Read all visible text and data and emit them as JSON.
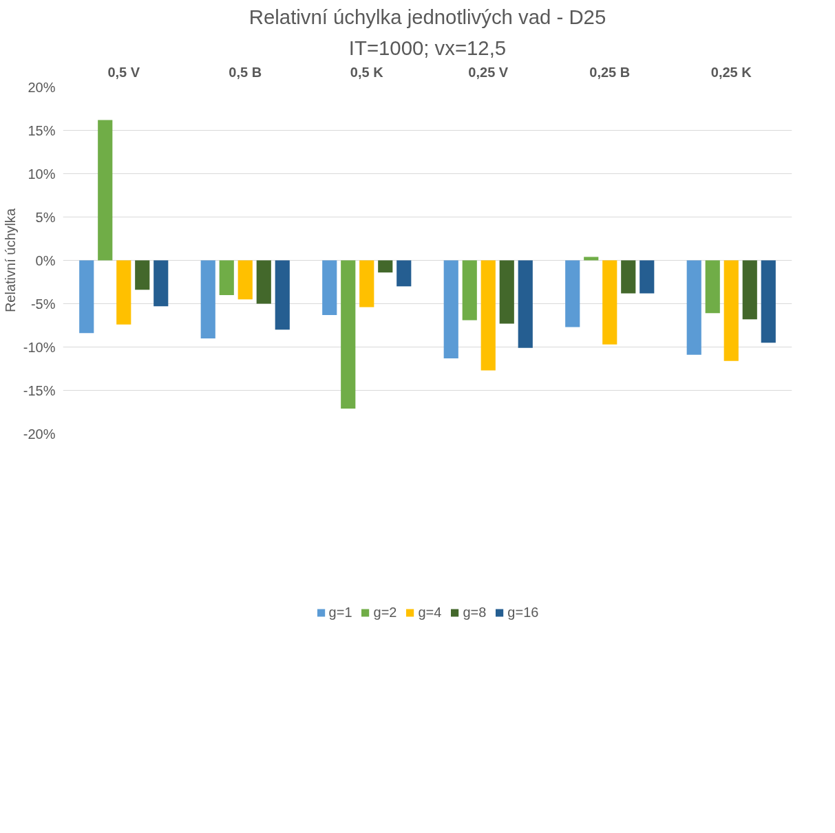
{
  "chart_data": {
    "type": "bar",
    "title": "Relativní úchylka jednotlivých vad - D25",
    "subtitle": "IT=1000; vx=12,5",
    "ylabel": "Relativní úchylka",
    "categories": [
      "0,5 V",
      "0,5 B",
      "0,5 K",
      "0,25 V",
      "0,25 B",
      "0,25 K"
    ],
    "series": [
      {
        "name": "g=1",
        "color": "#5b9bd5",
        "values": [
          -8.4,
          -9.0,
          -6.3,
          -11.3,
          -7.7,
          -10.9
        ]
      },
      {
        "name": "g=2",
        "color": "#70ad47",
        "values": [
          16.2,
          -4.0,
          -17.1,
          -6.9,
          0.4,
          -6.1
        ]
      },
      {
        "name": "g=4",
        "color": "#ffc000",
        "values": [
          -7.4,
          -4.5,
          -5.4,
          -12.7,
          -9.7,
          -11.6
        ]
      },
      {
        "name": "g=8",
        "color": "#43682b",
        "values": [
          -3.4,
          -5.0,
          -1.4,
          -7.3,
          -3.8,
          -6.8
        ]
      },
      {
        "name": "g=16",
        "color": "#255e91",
        "values": [
          -5.3,
          -8.0,
          -3.0,
          -10.1,
          -3.8,
          -9.5
        ]
      }
    ],
    "ylim": [
      -20,
      20
    ],
    "yticks": [
      {
        "value": -20,
        "label": "-20%"
      },
      {
        "value": -15,
        "label": "-15%"
      },
      {
        "value": -10,
        "label": "-10%"
      },
      {
        "value": -5,
        "label": "-5%"
      },
      {
        "value": 0,
        "label": "0%"
      },
      {
        "value": 5,
        "label": "5%"
      },
      {
        "value": 10,
        "label": "10%"
      },
      {
        "value": 15,
        "label": "15%"
      },
      {
        "value": 20,
        "label": "20%"
      }
    ],
    "grid": "y",
    "legend": "bottom"
  }
}
